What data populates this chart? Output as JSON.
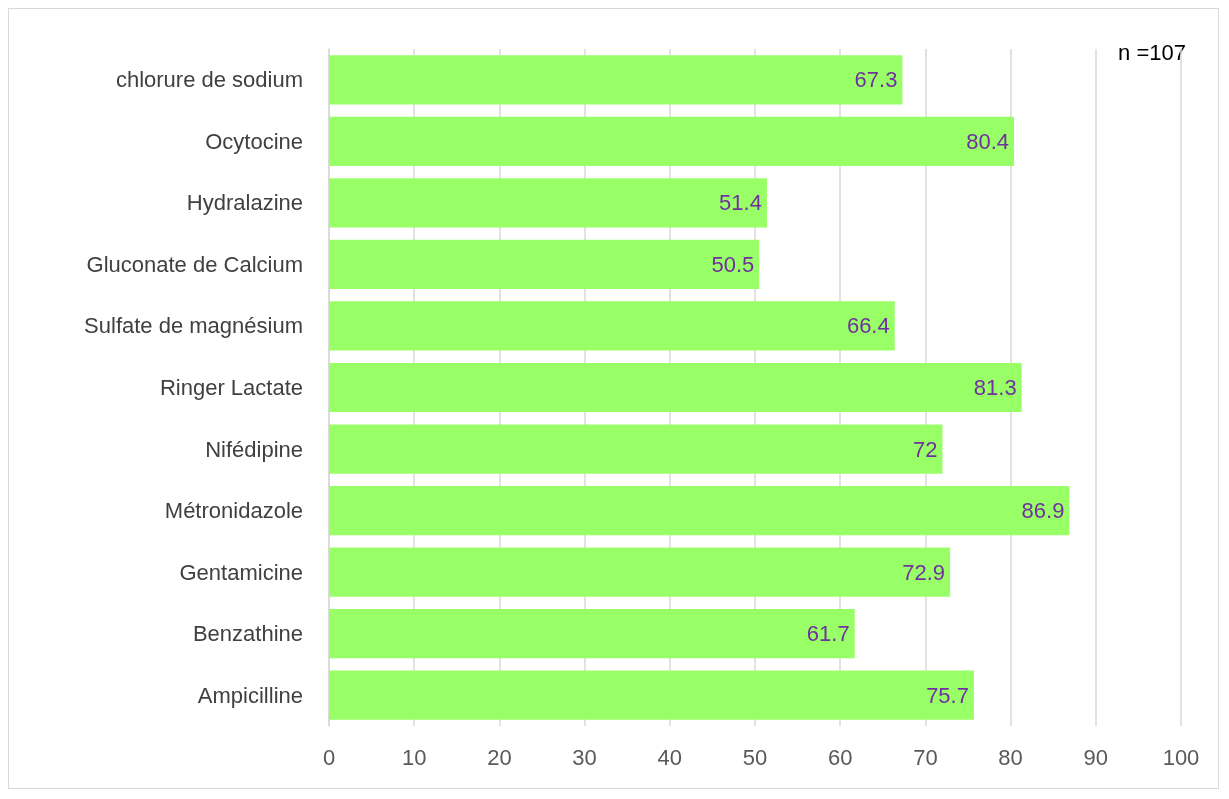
{
  "chart_data": {
    "type": "bar",
    "orientation": "horizontal",
    "categories": [
      "chlorure de sodium",
      "Ocytocine",
      "Hydralazine",
      "Gluconate de Calcium",
      "Sulfate de magnésium",
      "Ringer Lactate",
      "Nifédipine",
      "Métronidazole",
      "Gentamicine",
      "Benzathine",
      "Ampicilline"
    ],
    "values": [
      67.3,
      80.4,
      51.4,
      50.5,
      66.4,
      81.3,
      72,
      86.9,
      72.9,
      61.7,
      75.7
    ],
    "color": "#99ff66",
    "xlim": [
      0,
      100
    ],
    "xticks": [
      0,
      10,
      20,
      30,
      40,
      50,
      60,
      70,
      80,
      90,
      100
    ],
    "grid": "x",
    "data_labels": true,
    "annotations": [
      "n =107"
    ]
  }
}
